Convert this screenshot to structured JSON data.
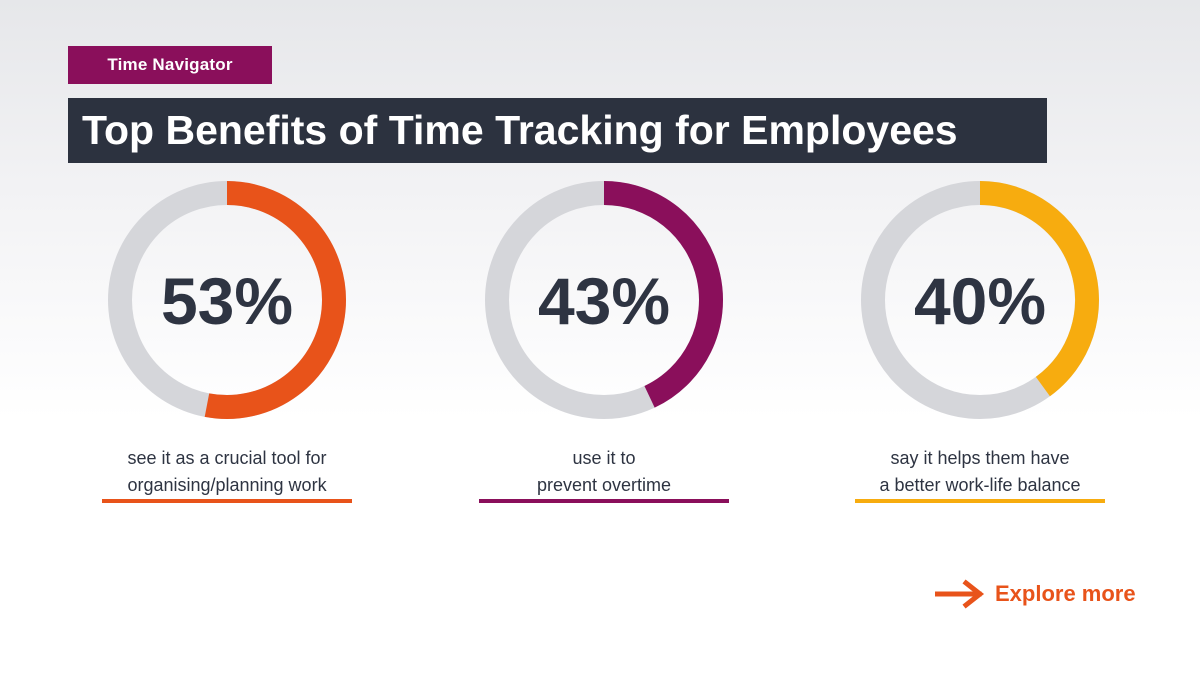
{
  "brand": {
    "label": "Time Navigator"
  },
  "title": "Top Benefits of Time Tracking for Employees",
  "colors": {
    "brand": "#8a0f5b",
    "title_bg": "#2c323f",
    "track": "#d5d6da",
    "text": "#2e3442",
    "link": "#e8531a"
  },
  "chart_data": {
    "type": "donut",
    "unit": "%",
    "max": 100,
    "items": [
      {
        "value": 53,
        "label": "53%",
        "caption_lines": [
          "see it as a crucial tool for",
          "organising/planning work"
        ],
        "color": "#e8531a"
      },
      {
        "value": 43,
        "label": "43%",
        "caption_lines": [
          "use it to",
          "prevent overtime"
        ],
        "color": "#8a0f5b"
      },
      {
        "value": 40,
        "label": "40%",
        "caption_lines": [
          "say it helps them have",
          "a better work-life balance"
        ],
        "color": "#f7ac0f"
      }
    ]
  },
  "cta": {
    "label": "Explore more",
    "icon": "arrow-right-icon"
  }
}
